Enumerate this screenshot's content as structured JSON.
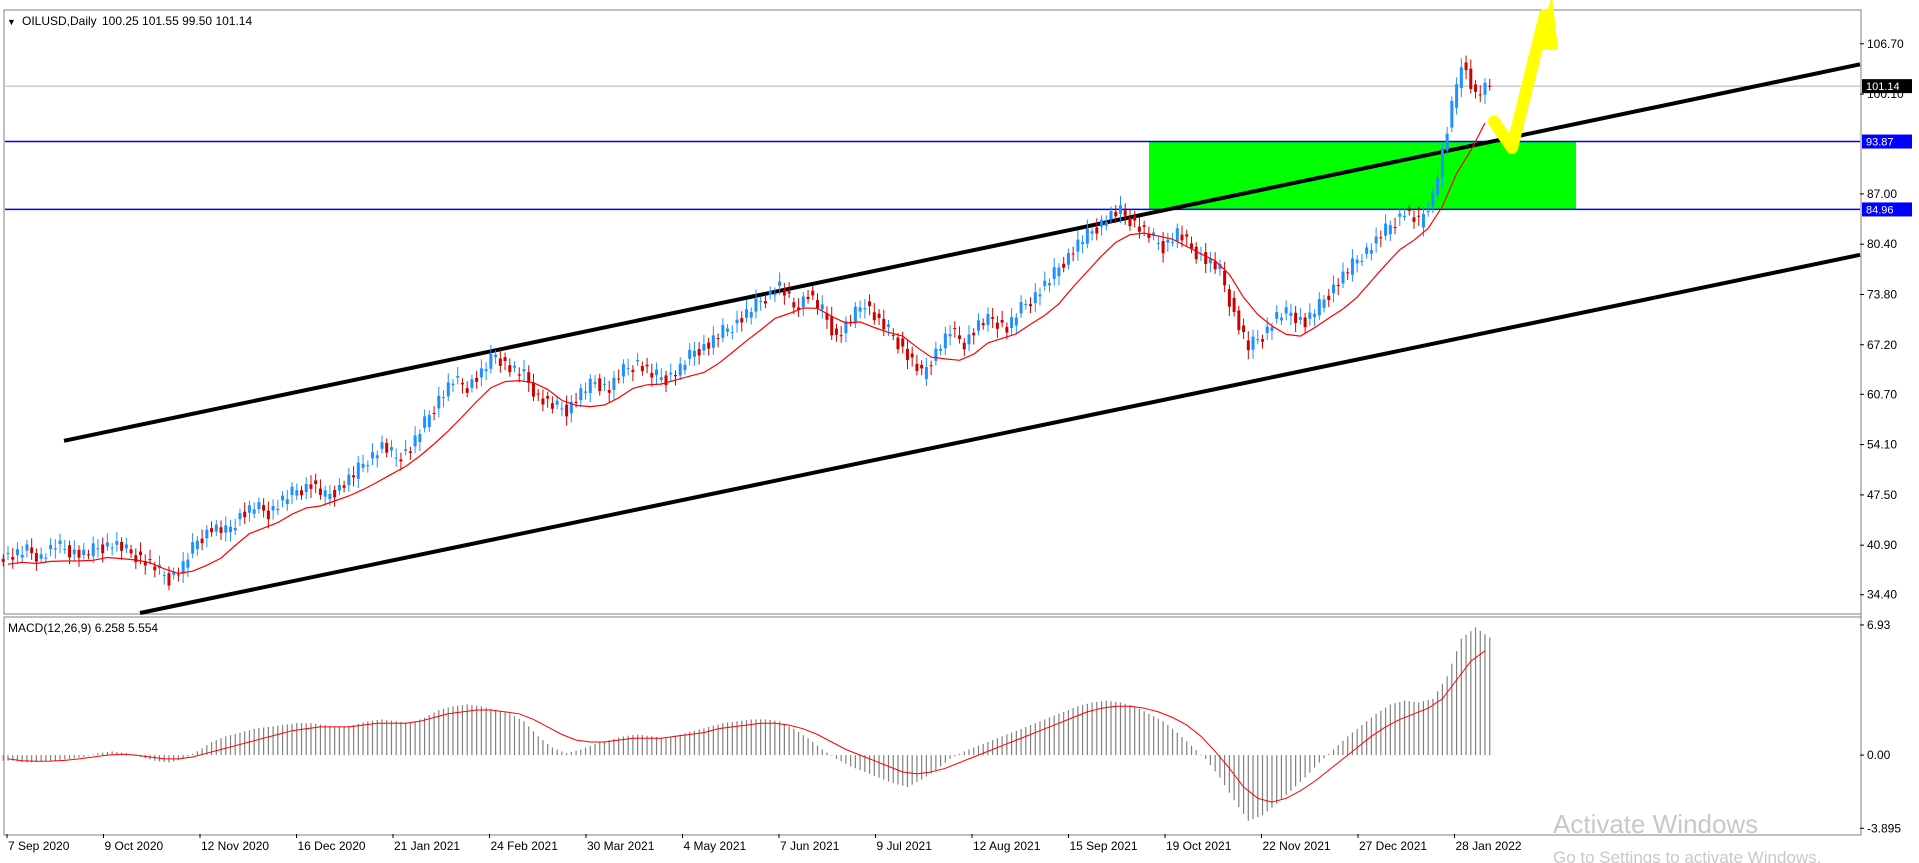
{
  "chart_data": [
    {
      "type": "candlestick",
      "title": "OILUSD,Daily",
      "ohlc_text": "100.25 101.55 99.50 101.14",
      "ylim": [
        32.0,
        111.0
      ],
      "y_ticks": [
        "106.70",
        "100.10",
        "87.00",
        "80.40",
        "73.80",
        "67.20",
        "60.70",
        "54.10",
        "47.50",
        "40.90",
        "34.40"
      ],
      "y_tick_values": [
        106.7,
        100.1,
        87.0,
        80.4,
        73.8,
        67.2,
        60.7,
        54.1,
        47.5,
        40.9,
        34.4
      ],
      "x_ticks": [
        "7 Sep 2020",
        "9 Oct 2020",
        "12 Nov 2020",
        "16 Dec 2020",
        "21 Jan 2021",
        "24 Feb 2021",
        "30 Mar 2021",
        "4 May 2021",
        "7 Jun 2021",
        "9 Jul 2021",
        "12 Aug 2021",
        "15 Sep 2021",
        "19 Oct 2021",
        "22 Nov 2021",
        "27 Dec 2021",
        "28 Jan 2022"
      ],
      "current_price": "101.14",
      "levels": [
        {
          "label": "93.87",
          "value": 93.87,
          "color": "#0000ff"
        },
        {
          "label": "84.96",
          "value": 84.96,
          "color": "#0000ff"
        }
      ],
      "close_series": [
        39.6,
        40.1,
        39.4,
        40.8,
        40.2,
        39.7,
        40.5,
        41.2,
        40.1,
        39.3,
        37.9,
        36.5,
        38.2,
        41.5,
        43.2,
        42.6,
        44.8,
        45.9,
        45.2,
        46.8,
        48.1,
        48.9,
        47.2,
        48.5,
        50.1,
        52.3,
        53.8,
        52.4,
        53.6,
        56.9,
        60.2,
        62.4,
        61.8,
        63.5,
        65.9,
        64.2,
        63.1,
        60.4,
        59.1,
        58.7,
        60.9,
        62.3,
        61.5,
        63.8,
        64.9,
        63.2,
        62.8,
        64.1,
        66.4,
        67.3,
        68.9,
        70.2,
        71.8,
        73.5,
        74.9,
        72.1,
        73.8,
        71.6,
        68.2,
        70.5,
        72.9,
        70.1,
        68.4,
        65.8,
        63.2,
        66.4,
        68.9,
        67.5,
        69.8,
        70.6,
        69.4,
        71.9,
        73.8,
        75.6,
        78.2,
        80.4,
        82.1,
        83.9,
        84.6,
        83.2,
        81.5,
        80.1,
        81.9,
        79.8,
        78.4,
        76.9,
        71.2,
        66.8,
        68.5,
        70.9,
        71.4,
        70.1,
        72.3,
        74.8,
        76.9,
        79.1,
        80.8,
        82.9,
        84.7,
        83.1,
        86.9,
        95.2,
        104.5,
        99.8,
        101.14
      ],
      "ma_color": "#ff0000",
      "zone": {
        "from": 84.96,
        "to": 93.87,
        "color": "#00ff00"
      },
      "channel_color": "#000000",
      "arrow_color": "#ffff00"
    },
    {
      "type": "histogram",
      "title": "MACD(12,26,9) 6.258 5.554",
      "ylim": [
        -4.2,
        7.3
      ],
      "y_ticks": [
        "6.93",
        "0.00",
        "-3.895"
      ],
      "y_tick_values": [
        6.93,
        0.0,
        -3.895
      ],
      "histogram": [
        -0.3,
        -0.4,
        -0.35,
        -0.3,
        -0.2,
        -0.1,
        0.1,
        0.2,
        0.1,
        -0.1,
        -0.3,
        -0.4,
        -0.2,
        0.2,
        0.7,
        1.0,
        1.2,
        1.4,
        1.5,
        1.6,
        1.7,
        1.7,
        1.6,
        1.5,
        1.6,
        1.8,
        1.9,
        1.8,
        1.7,
        2.0,
        2.4,
        2.6,
        2.7,
        2.6,
        2.4,
        2.2,
        1.8,
        1.0,
        0.4,
        0.1,
        0.3,
        0.6,
        0.8,
        1.0,
        1.1,
        1.0,
        0.9,
        1.1,
        1.3,
        1.5,
        1.7,
        1.8,
        1.9,
        1.9,
        1.8,
        1.4,
        0.9,
        0.3,
        -0.2,
        -0.6,
        -0.9,
        -1.2,
        -1.5,
        -1.7,
        -1.3,
        -0.8,
        -0.2,
        0.2,
        0.5,
        0.8,
        1.1,
        1.4,
        1.7,
        2.0,
        2.3,
        2.6,
        2.8,
        2.9,
        2.8,
        2.6,
        2.2,
        1.8,
        1.2,
        0.5,
        -0.2,
        -1.2,
        -2.4,
        -3.5,
        -3.2,
        -2.6,
        -1.9,
        -1.2,
        -0.4,
        0.3,
        1.0,
        1.6,
        2.2,
        2.7,
        2.9,
        2.8,
        3.0,
        4.2,
        6.2,
        6.8,
        6.26
      ],
      "signal": [
        -0.2,
        -0.3,
        -0.33,
        -0.32,
        -0.28,
        -0.2,
        -0.1,
        0.0,
        0.05,
        0.0,
        -0.1,
        -0.2,
        -0.2,
        -0.1,
        0.1,
        0.3,
        0.5,
        0.7,
        0.9,
        1.1,
        1.3,
        1.4,
        1.5,
        1.5,
        1.5,
        1.6,
        1.7,
        1.7,
        1.7,
        1.8,
        2.0,
        2.2,
        2.3,
        2.4,
        2.4,
        2.3,
        2.2,
        1.9,
        1.5,
        1.1,
        0.8,
        0.7,
        0.7,
        0.8,
        0.9,
        0.9,
        0.9,
        1.0,
        1.1,
        1.2,
        1.4,
        1.5,
        1.6,
        1.7,
        1.7,
        1.6,
        1.4,
        1.1,
        0.7,
        0.3,
        0.0,
        -0.3,
        -0.6,
        -0.9,
        -1.0,
        -0.9,
        -0.7,
        -0.4,
        -0.1,
        0.2,
        0.5,
        0.8,
        1.1,
        1.4,
        1.7,
        2.0,
        2.3,
        2.5,
        2.6,
        2.6,
        2.5,
        2.3,
        2.0,
        1.6,
        1.0,
        0.2,
        -0.7,
        -1.7,
        -2.3,
        -2.5,
        -2.3,
        -1.9,
        -1.4,
        -0.8,
        -0.2,
        0.4,
        1.0,
        1.5,
        1.9,
        2.2,
        2.5,
        3.0,
        4.0,
        5.0,
        5.554
      ],
      "bar_color": "#808080",
      "signal_color": "#ff0000"
    }
  ],
  "watermark": {
    "line1": "Activate Windows",
    "line2": "Go to Settings to activate Windows."
  }
}
